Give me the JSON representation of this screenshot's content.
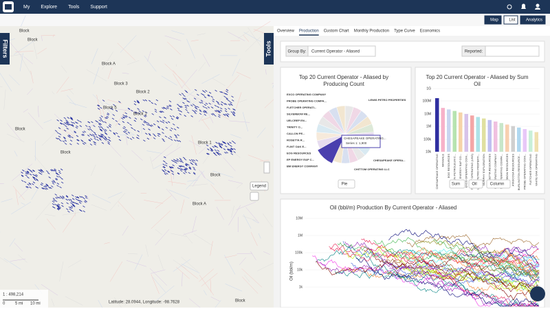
{
  "navbar": {
    "menu": [
      "My",
      "Explore",
      "Tools",
      "Support"
    ]
  },
  "view_buttons": [
    "Map",
    "List",
    "Analytics"
  ],
  "map": {
    "filters_tab": "Filters",
    "tools_tab": "Tools",
    "labels": [
      "Block",
      "Block",
      "Block A",
      "Block 3",
      "Block 2",
      "Block 5",
      "Block 1",
      "Block 1",
      "Block",
      "Block",
      "Block A",
      "Block",
      "Block"
    ],
    "legend": "Legend",
    "scale": "1 : 498,214",
    "scale_marks": [
      "0",
      "5 mi",
      "10 mi"
    ],
    "coordinates": "Latitude: 28.0944, Longitude: -98.7628"
  },
  "tabs": [
    "Overview",
    "Production",
    "Custom Chart",
    "Monthly Production",
    "Type Curve",
    "Economics"
  ],
  "group_by": {
    "label": "Group By:",
    "value": "Current Operator - Aliased",
    "reported_label": "Reported:"
  },
  "pie_card": {
    "title_lines": [
      "Top 20 Current Operator - Aliased by",
      "Producing Count"
    ],
    "labels": [
      "EXCO OPERATING COMPANY",
      "PROBE OPERATING COMPA...",
      "FLETCHER OPERATI...",
      "SILVERBOW RE...",
      "UELCREP EN...",
      "TRINITY O...",
      "CALLON PE...",
      "ROSETTA R...",
      "FLINT OAK E...",
      "EOG RESOURCES",
      "EP ENERGY E&P C...",
      "BM ENERGY COMPANY"
    ],
    "right_labels": [
      "LEWIS PETRO PROPERTIES",
      "CHESAPEAKE OPERA...",
      "CHITTOM OPERATING LLC"
    ],
    "tooltip_title": "CHESAPEAKE OPERATING...",
    "tooltip_text": "Series 1: 1,900",
    "button": "Pie"
  },
  "bar_card": {
    "title_lines": [
      "Top 20 Current Operator - Aliased by Sum",
      "Oil"
    ],
    "yticks": [
      "1G",
      "100M",
      "10M",
      "1M",
      "100k",
      "10k"
    ],
    "categories": [
      "CHESAPEAKE OPERATING",
      "MANHALE",
      "EOG RESOURCES",
      "CALLON PETROLEUM C...",
      "EP ENERGY E&P CO...",
      "EXCO OPERATING COM...",
      "TRINITY OPERATING (USG)",
      "LEWIS PETRO PROPERTI...",
      "MURPHY EXPLORATION",
      "ROSETTA RESOURCES",
      "SM OPERATING COMPANY",
      "SPR OPERATING COMPA...",
      "SILVERBOW RESOURCES",
      "ATASCOSA RESOURCES",
      "BURLINGTON RESOURCE...",
      "PROBE OPERATING COM...",
      "FLETCHER OPERATING",
      "WHITE OAK OPERATING"
    ],
    "buttons": [
      "Sum",
      "Oil",
      "Column"
    ]
  },
  "line_card": {
    "title": "Oil (bbl/m) Production By Current Operator - Aliased",
    "yticks": [
      "10M",
      "1M",
      "100k",
      "10k",
      "1k"
    ],
    "ylabel": "Oil (bbl/m)"
  }
}
